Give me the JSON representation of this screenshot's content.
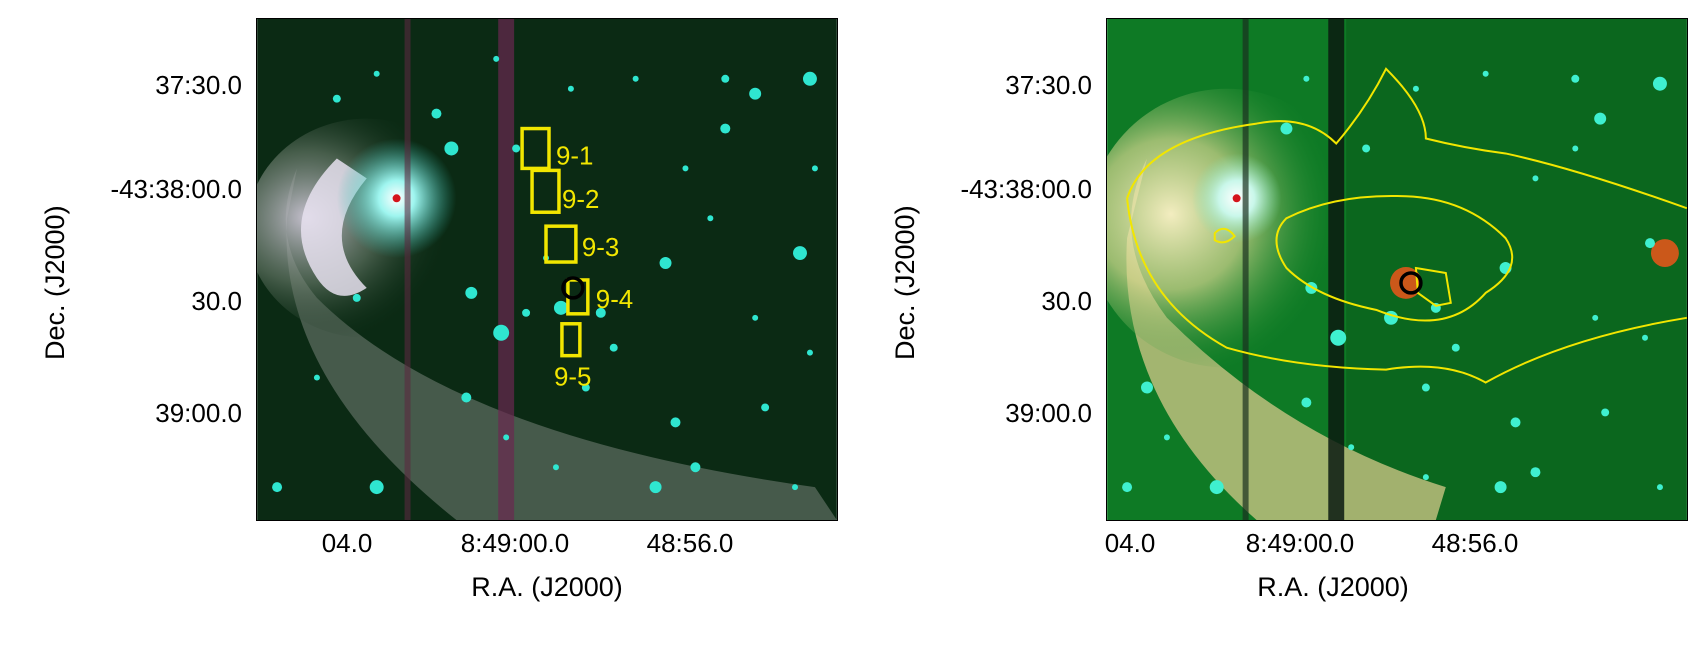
{
  "figure": {
    "x_axis_title": "R.A. (J2000)",
    "y_axis_title": "Dec. (J2000)",
    "ra_ticks": [
      "04.0",
      "8:49:00.0",
      "48:56.0"
    ],
    "dec_ticks": [
      "37:30.0",
      "-43:38:00.0",
      "30.0",
      "39:00.0"
    ]
  },
  "left_panel": {
    "regions": [
      {
        "label": "9-1"
      },
      {
        "label": "9-2"
      },
      {
        "label": "9-3"
      },
      {
        "label": "9-4"
      },
      {
        "label": "9-5"
      }
    ]
  },
  "colors": {
    "background_field": "#0b2a14",
    "region_box": "#f2e600",
    "contour": "#f2e600",
    "marker_circle": "#000000"
  }
}
